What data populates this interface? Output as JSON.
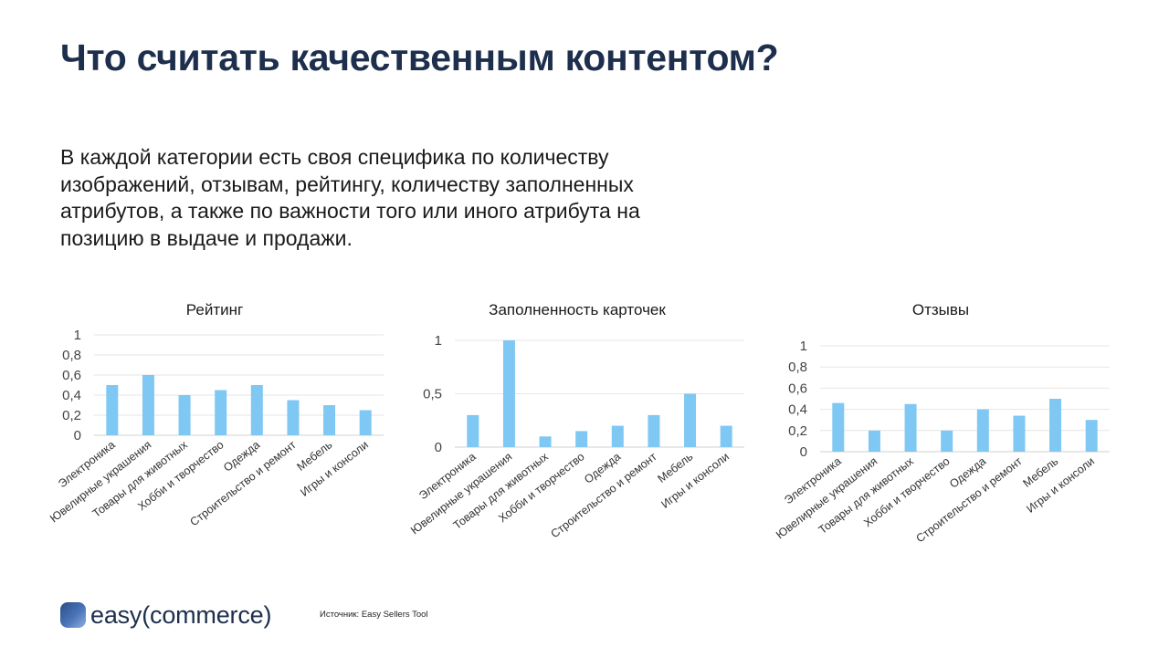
{
  "page": {
    "title": "Что считать качественным контентом?",
    "subtitle": "В каждой категории есть своя специфика по количеству изображений, отзывам, рейтингу, количеству заполненных атрибутов, а также по важности того или иного атрибута на позицию в выдаче и продажи."
  },
  "footer": {
    "brand": "easy(commerce)",
    "source": "Источник: Easy Sellers Tool"
  },
  "colors": {
    "bar": "#7ec8f3",
    "title": "#1d2f4d",
    "grid": "#e6e6e6",
    "axis": "#d0d0d0"
  },
  "chart_data": [
    {
      "type": "bar",
      "title": "Рейтинг",
      "categories": [
        "Электроника",
        "Ювелирные украшения",
        "Товары для животных",
        "Хобби и творчество",
        "Одежда",
        "Строительство и ремонт",
        "Мебель",
        "Игры и консоли"
      ],
      "values": [
        0.5,
        0.6,
        0.4,
        0.45,
        0.5,
        0.35,
        0.3,
        0.25
      ],
      "yticks": [
        "0",
        "0,2",
        "0,4",
        "0,6",
        "0,8",
        "1"
      ],
      "ylim": [
        0,
        1
      ],
      "grid": true,
      "xlabel": "",
      "ylabel": ""
    },
    {
      "type": "bar",
      "title": "Заполненность карточек",
      "categories": [
        "Электроника",
        "Ювелирные украшения",
        "Товары для животных",
        "Хобби и творчество",
        "Одежда",
        "Строительство и ремонт",
        "Мебель",
        "Игры и консоли"
      ],
      "values": [
        0.3,
        1.0,
        0.1,
        0.15,
        0.2,
        0.3,
        0.5,
        0.2
      ],
      "yticks": [
        "0",
        "0,5",
        "1"
      ],
      "ylim": [
        0,
        1
      ],
      "grid": true,
      "xlabel": "",
      "ylabel": ""
    },
    {
      "type": "bar",
      "title": "Отзывы",
      "categories": [
        "Электроника",
        "Ювелирные украшения",
        "Товары для животных",
        "Хобби и творчество",
        "Одежда",
        "Строительство и ремонт",
        "Мебель",
        "Игры и консоли"
      ],
      "values": [
        0.46,
        0.2,
        0.45,
        0.2,
        0.4,
        0.34,
        0.5,
        0.3
      ],
      "yticks": [
        "0",
        "0,2",
        "0,4",
        "0,6",
        "0,8",
        "1"
      ],
      "ylim": [
        0,
        1
      ],
      "grid": true,
      "xlabel": "",
      "ylabel": ""
    }
  ]
}
